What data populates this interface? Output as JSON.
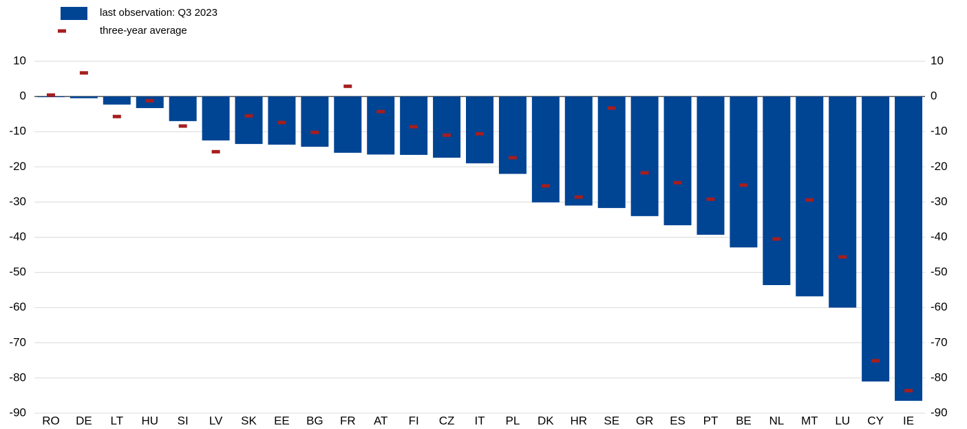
{
  "chart_data": {
    "type": "bar",
    "categories": [
      "RO",
      "DE",
      "LT",
      "HU",
      "SI",
      "LV",
      "SK",
      "EE",
      "BG",
      "FR",
      "AT",
      "FI",
      "CZ",
      "IT",
      "PL",
      "DK",
      "HR",
      "SE",
      "GR",
      "ES",
      "PT",
      "BE",
      "NL",
      "MT",
      "LU",
      "CY",
      "IE"
    ],
    "series": [
      {
        "name": "last observation: Q3 2023",
        "type": "bar",
        "color": "#004494",
        "values": [
          -0.2,
          -0.5,
          -2.3,
          -3.3,
          -7,
          -12.5,
          -13.5,
          -13.7,
          -14.3,
          -16,
          -16.5,
          -16.6,
          -17.4,
          -19,
          -22,
          -30.1,
          -31,
          -31.7,
          -34,
          -36.6,
          -39.3,
          -42.9,
          -53.6,
          -56.8,
          -60,
          -81,
          -86.5
        ]
      },
      {
        "name": "three-year average",
        "type": "scatter",
        "color": "#a51e1e",
        "values": [
          0.4,
          6.7,
          -5.7,
          -1.2,
          -8.4,
          -15.7,
          -5.5,
          -7.4,
          -10.2,
          2.9,
          -4.3,
          -8.6,
          -11,
          -10.6,
          -17.4,
          -25.4,
          -28.6,
          -3.3,
          -21.7,
          -24.5,
          -29.2,
          -25.2,
          -40.5,
          -29.4,
          -45.6,
          -75.1,
          -83.6
        ]
      }
    ],
    "ylim": [
      -90,
      10
    ],
    "yticks": [
      10,
      0,
      -10,
      -20,
      -30,
      -40,
      -50,
      -60,
      -70,
      -80,
      -90
    ],
    "grid": true,
    "mirror_y_axis": true
  }
}
